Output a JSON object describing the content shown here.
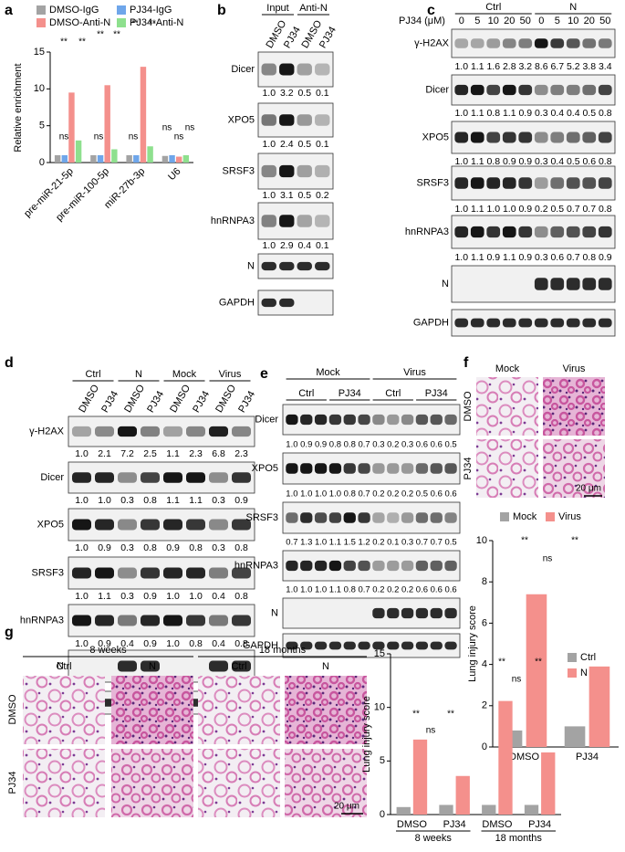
{
  "panel_labels": [
    "a",
    "b",
    "c",
    "d",
    "e",
    "f",
    "g"
  ],
  "chart_data": [
    {
      "type": "bar",
      "y_label": "Relative enrichment",
      "categories": [
        "pre-miR-21-5p",
        "pre-miR-100-5p",
        "miR-27b-3p",
        "U6"
      ],
      "series": [
        {
          "name": "DMSO-IgG",
          "color": "#a3a3a3",
          "values": [
            1,
            1,
            1,
            0.9
          ]
        },
        {
          "name": "PJ34-IgG",
          "color": "#6fa6ea",
          "values": [
            1,
            1,
            1,
            1
          ]
        },
        {
          "name": "DMSO-Anti-N",
          "color": "#f4908c",
          "values": [
            9.5,
            10.5,
            13,
            0.8
          ]
        },
        {
          "name": "PJ34-Anti-N",
          "color": "#8ee08e",
          "values": [
            3,
            1.8,
            2.2,
            1
          ]
        }
      ],
      "ylim": [
        0,
        15
      ],
      "yticks": [
        0,
        5,
        10,
        15
      ],
      "annotations": [
        "**",
        "**",
        "ns",
        "**",
        "**",
        "ns",
        "**",
        "**",
        "ns",
        "ns",
        "ns",
        "ns"
      ]
    },
    {
      "type": "bar",
      "y_label": "Lung injury score",
      "categories": [
        "DMSO",
        "PJ34"
      ],
      "series": [
        {
          "name": "Mock",
          "color": "#a3a3a3",
          "values": [
            0.8,
            1.0
          ]
        },
        {
          "name": "Virus",
          "color": "#f4908c",
          "values": [
            7.4,
            3.9
          ]
        }
      ],
      "ylim": [
        0,
        10
      ],
      "yticks": [
        0,
        2,
        4,
        6,
        8,
        10
      ],
      "annotations": [
        "**",
        "ns",
        "**"
      ]
    },
    {
      "type": "bar",
      "y_label": "Lung injury score",
      "categories": [
        "DMSO",
        "PJ34",
        "DMSO",
        "PJ34"
      ],
      "group_labels": [
        "8 weeks",
        "18 months"
      ],
      "series": [
        {
          "name": "Ctrl",
          "color": "#a3a3a3",
          "values": [
            0.7,
            0.9,
            0.9,
            0.9
          ]
        },
        {
          "name": "N",
          "color": "#f4908c",
          "values": [
            7.0,
            3.6,
            10.6,
            5.8
          ]
        }
      ],
      "ylim": [
        0,
        15
      ],
      "yticks": [
        0,
        5,
        10,
        15
      ],
      "annotations": [
        "**",
        "ns",
        "**",
        "**",
        "ns",
        "**"
      ]
    }
  ],
  "blots": {
    "b": {
      "headers": [
        "Input",
        "Anti-N"
      ],
      "lanes": [
        "DMSO",
        "PJ34",
        "DMSO",
        "PJ34"
      ],
      "rows": [
        {
          "label": "Dicer",
          "values": [
            "1.0",
            "3.2",
            "0.5",
            "0.1"
          ]
        },
        {
          "label": "XPO5",
          "values": [
            "1.0",
            "2.4",
            "0.5",
            "0.1"
          ]
        },
        {
          "label": "SRSF3",
          "values": [
            "1.0",
            "3.1",
            "0.5",
            "0.2"
          ]
        },
        {
          "label": "hnRNPA3",
          "values": [
            "1.0",
            "2.9",
            "0.4",
            "0.1"
          ]
        },
        {
          "label": "N"
        },
        {
          "label": "GAPDH"
        }
      ]
    },
    "c": {
      "unit_label": "PJ34 (μM)",
      "headers": [
        "Ctrl",
        "N"
      ],
      "lanes": [
        "0",
        "5",
        "10",
        "20",
        "50",
        "0",
        "5",
        "10",
        "20",
        "50"
      ],
      "rows": [
        {
          "label": "γ-H2AX",
          "values": [
            "1.0",
            "1.1",
            "1.6",
            "2.8",
            "3.2",
            "8.6",
            "6.7",
            "5.2",
            "3.8",
            "3.4"
          ]
        },
        {
          "label": "Dicer",
          "values": [
            "1.0",
            "1.1",
            "0.8",
            "1.1",
            "0.9",
            "0.3",
            "0.4",
            "0.4",
            "0.5",
            "0.8"
          ]
        },
        {
          "label": "XPO5",
          "values": [
            "1.0",
            "1.1",
            "0.8",
            "0.9",
            "0.9",
            "0.3",
            "0.4",
            "0.5",
            "0.6",
            "0.8"
          ]
        },
        {
          "label": "SRSF3",
          "values": [
            "1.0",
            "1.1",
            "1.0",
            "1.0",
            "0.9",
            "0.2",
            "0.5",
            "0.7",
            "0.7",
            "0.8"
          ]
        },
        {
          "label": "hnRNPA3",
          "values": [
            "1.0",
            "1.1",
            "0.9",
            "1.1",
            "0.9",
            "0.3",
            "0.6",
            "0.7",
            "0.8",
            "0.9"
          ]
        },
        {
          "label": "N"
        },
        {
          "label": "GAPDH"
        }
      ]
    },
    "d": {
      "headers": [
        "Ctrl",
        "N",
        "Mock",
        "Virus"
      ],
      "lanes": [
        "DMSO",
        "PJ34",
        "DMSO",
        "PJ34",
        "DMSO",
        "PJ34",
        "DMSO",
        "PJ34"
      ],
      "rows": [
        {
          "label": "γ-H2AX",
          "values": [
            "1.0",
            "2.1",
            "7.2",
            "2.5",
            "1.1",
            "2.3",
            "6.8",
            "2.3"
          ]
        },
        {
          "label": "Dicer",
          "values": [
            "1.0",
            "1.0",
            "0.3",
            "0.8",
            "1.1",
            "1.1",
            "0.3",
            "0.9"
          ]
        },
        {
          "label": "XPO5",
          "values": [
            "1.0",
            "0.9",
            "0.3",
            "0.8",
            "0.9",
            "0.8",
            "0.3",
            "0.8"
          ]
        },
        {
          "label": "SRSF3",
          "values": [
            "1.0",
            "1.1",
            "0.3",
            "0.9",
            "1.0",
            "1.0",
            "0.4",
            "0.8"
          ]
        },
        {
          "label": "hnRNPA3",
          "values": [
            "1.0",
            "0.9",
            "0.4",
            "0.9",
            "1.0",
            "0.8",
            "0.4",
            "0.8"
          ]
        },
        {
          "label": "N"
        },
        {
          "label": "GAPDH"
        }
      ]
    },
    "e": {
      "headers": [
        "Mock",
        "Virus"
      ],
      "subheaders": [
        "Ctrl",
        "PJ34",
        "Ctrl",
        "PJ34"
      ],
      "rows": [
        {
          "label": "Dicer",
          "values": [
            "1.0",
            "0.9",
            "0.9",
            "0.8",
            "0.8",
            "0.7",
            "0.3",
            "0.2",
            "0.3",
            "0.6",
            "0.6",
            "0.5"
          ]
        },
        {
          "label": "XPO5",
          "values": [
            "1.0",
            "1.0",
            "1.0",
            "1.0",
            "0.8",
            "0.7",
            "0.2",
            "0.2",
            "0.2",
            "0.5",
            "0.6",
            "0.6"
          ]
        },
        {
          "label": "SRSF3",
          "values": [
            "0.7",
            "1.3",
            "1.0",
            "1.1",
            "1.5",
            "1.2",
            "0.2",
            "0.1",
            "0.3",
            "0.7",
            "0.7",
            "0.5"
          ]
        },
        {
          "label": "hnRNPA3",
          "values": [
            "1.0",
            "1.0",
            "1.0",
            "1.1",
            "0.8",
            "0.7",
            "0.2",
            "0.2",
            "0.2",
            "0.6",
            "0.6",
            "0.6"
          ]
        },
        {
          "label": "N"
        },
        {
          "label": "GAPDH"
        }
      ]
    }
  },
  "histology": {
    "f": {
      "columns": [
        "Mock",
        "Virus"
      ],
      "rows": [
        "DMSO",
        "PJ34"
      ],
      "scale_bar": "20 μm"
    },
    "g": {
      "groups": [
        "8 weeks",
        "18 months"
      ],
      "columns": [
        "Ctrl",
        "N",
        "Ctrl",
        "N"
      ],
      "rows": [
        "DMSO",
        "PJ34"
      ],
      "scale_bar": "20 μm"
    }
  }
}
